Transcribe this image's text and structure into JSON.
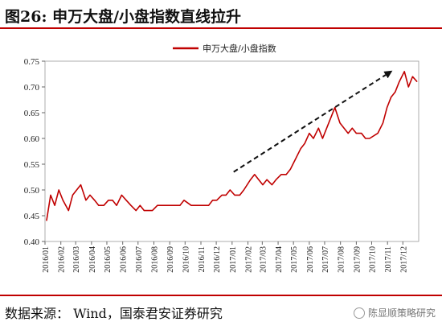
{
  "header": {
    "title": "图26:  申万大盘/小盘指数直线拉升"
  },
  "footer": {
    "source": "数据来源： Wind，国泰君安证券研究",
    "watermark": "陈显顺策略研究"
  },
  "colors": {
    "accent": "#c00000",
    "series": "#c00000",
    "arrow": "#111111"
  },
  "chart_data": {
    "type": "line",
    "title": "",
    "xlabel": "",
    "ylabel": "",
    "ylim": [
      0.4,
      0.75
    ],
    "yticks": [
      "0.40",
      "0.45",
      "0.50",
      "0.55",
      "0.60",
      "0.65",
      "0.70",
      "0.75"
    ],
    "x_tick_labels": [
      "2016/01",
      "2016/02",
      "2016/03",
      "2016/04",
      "2016/05",
      "2016/06",
      "2016/07",
      "2016/08",
      "2016/09",
      "2016/10",
      "2016/11",
      "2016/12",
      "2017/01",
      "2017/02",
      "2017/03",
      "2017/04",
      "2017/05",
      "2017/06",
      "2017/07",
      "2017/08",
      "2017/09",
      "2017/10",
      "2017/11",
      "2017/12"
    ],
    "legend": {
      "position": "top-center"
    },
    "grid": false,
    "series": [
      {
        "name": "申万大盘/小盘指数",
        "x": [
          "2016/01/04",
          "2016/01/12",
          "2016/01/20",
          "2016/01/28",
          "2016/02/05",
          "2016/02/16",
          "2016/02/24",
          "2016/03/03",
          "2016/03/11",
          "2016/03/21",
          "2016/03/29",
          "2016/04/07",
          "2016/04/15",
          "2016/04/25",
          "2016/05/04",
          "2016/05/12",
          "2016/05/20",
          "2016/05/30",
          "2016/06/08",
          "2016/06/17",
          "2016/06/27",
          "2016/07/05",
          "2016/07/13",
          "2016/07/21",
          "2016/07/29",
          "2016/08/08",
          "2016/08/16",
          "2016/08/24",
          "2016/09/01",
          "2016/09/09",
          "2016/09/21",
          "2016/09/29",
          "2016/10/13",
          "2016/10/21",
          "2016/10/31",
          "2016/11/08",
          "2016/11/16",
          "2016/11/24",
          "2016/12/02",
          "2016/12/12",
          "2016/12/20",
          "2016/12/28",
          "2017/01/06",
          "2017/01/16",
          "2017/01/24",
          "2017/02/06",
          "2017/02/14",
          "2017/02/22",
          "2017/03/02",
          "2017/03/10",
          "2017/03/20",
          "2017/03/28",
          "2017/04/07",
          "2017/04/17",
          "2017/04/25",
          "2017/05/05",
          "2017/05/15",
          "2017/05/23",
          "2017/06/01",
          "2017/06/09",
          "2017/06/19",
          "2017/06/27",
          "2017/07/05",
          "2017/07/13",
          "2017/07/21",
          "2017/07/31",
          "2017/08/08",
          "2017/08/16",
          "2017/08/24",
          "2017/09/01",
          "2017/09/11",
          "2017/09/19",
          "2017/09/27",
          "2017/10/13",
          "2017/10/23",
          "2017/10/31",
          "2017/11/08",
          "2017/11/16",
          "2017/11/24",
          "2017/12/04",
          "2017/12/12",
          "2017/12/20",
          "2017/12/29"
        ],
        "y": [
          0.44,
          0.49,
          0.47,
          0.5,
          0.48,
          0.46,
          0.49,
          0.5,
          0.51,
          0.48,
          0.49,
          0.48,
          0.47,
          0.47,
          0.48,
          0.48,
          0.47,
          0.49,
          0.48,
          0.47,
          0.46,
          0.47,
          0.46,
          0.46,
          0.46,
          0.47,
          0.47,
          0.47,
          0.47,
          0.47,
          0.47,
          0.48,
          0.47,
          0.47,
          0.47,
          0.47,
          0.47,
          0.48,
          0.48,
          0.49,
          0.49,
          0.5,
          0.49,
          0.49,
          0.5,
          0.52,
          0.53,
          0.52,
          0.51,
          0.52,
          0.51,
          0.52,
          0.53,
          0.53,
          0.54,
          0.56,
          0.58,
          0.59,
          0.61,
          0.6,
          0.62,
          0.6,
          0.62,
          0.64,
          0.66,
          0.63,
          0.62,
          0.61,
          0.62,
          0.61,
          0.61,
          0.6,
          0.6,
          0.61,
          0.63,
          0.66,
          0.68,
          0.69,
          0.71,
          0.73,
          0.7,
          0.72,
          0.71
        ]
      }
    ],
    "annotations": [
      {
        "type": "dashed-arrow",
        "from": {
          "x": "2017/01/04",
          "y": 0.535
        },
        "to": {
          "x": "2017/11/08",
          "y": 0.73
        }
      }
    ]
  }
}
